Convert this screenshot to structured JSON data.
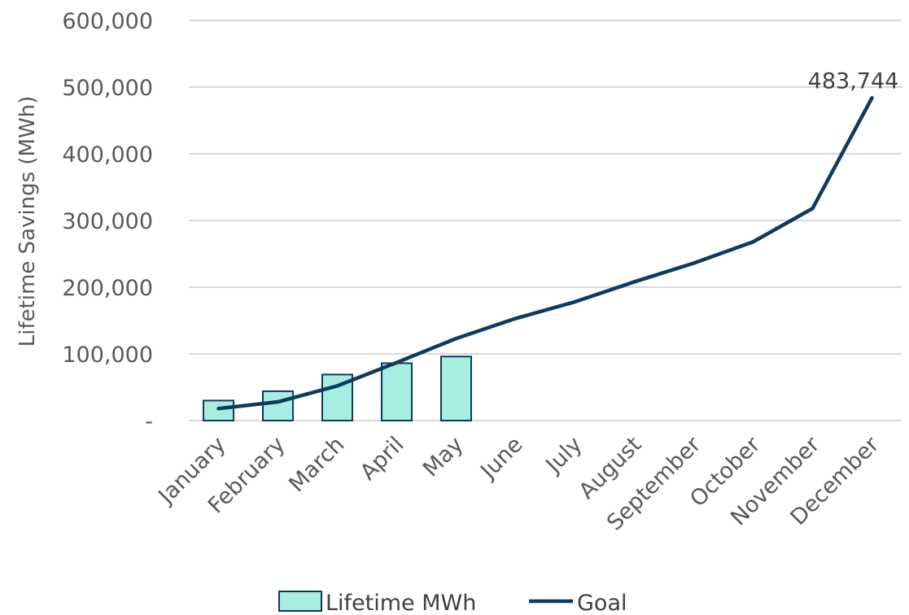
{
  "chart_data": {
    "type": "bar+line",
    "categories": [
      "January",
      "February",
      "March",
      "April",
      "May",
      "June",
      "July",
      "August",
      "September",
      "October",
      "November",
      "December"
    ],
    "series": [
      {
        "name": "Lifetime MWh",
        "type": "bar",
        "values": [
          30000,
          44000,
          69000,
          86000,
          96000,
          null,
          null,
          null,
          null,
          null,
          null,
          null
        ]
      },
      {
        "name": "Goal",
        "type": "line",
        "values": [
          18000,
          28000,
          52000,
          87000,
          123000,
          153000,
          178000,
          208000,
          236000,
          268000,
          318000,
          483744
        ]
      }
    ],
    "ylabel": "Lifetime Savings (MWh)",
    "xlabel": "",
    "ylim": [
      0,
      600000
    ],
    "yticks": [
      0,
      100000,
      200000,
      300000,
      400000,
      500000,
      600000
    ],
    "ytick_labels": [
      "-",
      "100,000",
      "200,000",
      "300,000",
      "400,000",
      "500,000",
      "600,000"
    ],
    "annotation": {
      "category": "December",
      "series": "Goal",
      "value": 483744,
      "text": "483,744"
    },
    "grid": true,
    "legend_position": "bottom",
    "colors": {
      "bar_fill": "#a8ede1",
      "bar_stroke": "#0d3b5e",
      "line": "#0d3b5e",
      "grid": "#d9d9d9"
    }
  }
}
